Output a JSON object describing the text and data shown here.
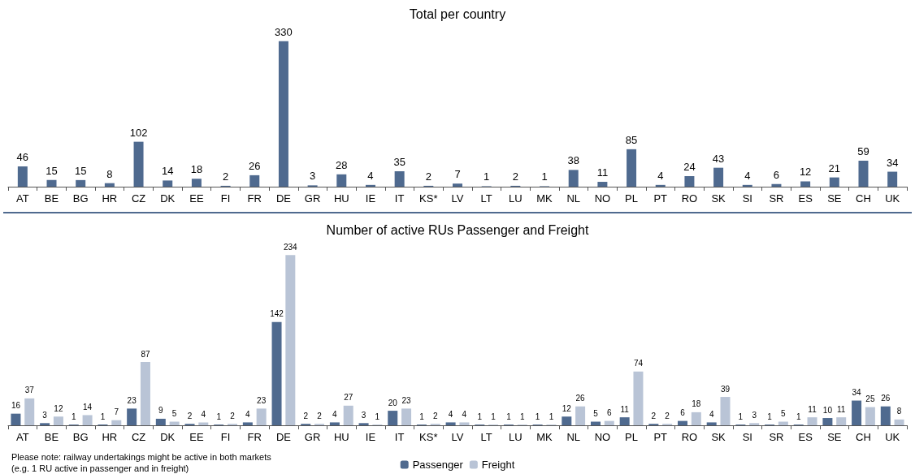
{
  "chart_data": [
    {
      "type": "bar",
      "title": "Total per country",
      "categories": [
        "AT",
        "BE",
        "BG",
        "HR",
        "CZ",
        "DK",
        "EE",
        "FI",
        "FR",
        "DE",
        "GR",
        "HU",
        "IE",
        "IT",
        "KS*",
        "LV",
        "LT",
        "LU",
        "MK",
        "NL",
        "NO",
        "PL",
        "PT",
        "RO",
        "SK",
        "SI",
        "SR",
        "ES",
        "SE",
        "CH",
        "UK"
      ],
      "values": [
        46,
        15,
        15,
        8,
        102,
        14,
        18,
        2,
        26,
        330,
        3,
        28,
        4,
        35,
        2,
        7,
        1,
        2,
        1,
        38,
        11,
        85,
        4,
        24,
        43,
        4,
        6,
        12,
        21,
        59,
        34
      ],
      "color": "#4f6a8f",
      "data_labels": true,
      "legend": false
    },
    {
      "type": "bar",
      "title": "Number of active RUs Passenger and Freight",
      "categories": [
        "AT",
        "BE",
        "BG",
        "HR",
        "CZ",
        "DK",
        "EE",
        "FI",
        "FR",
        "DE",
        "GR",
        "HU",
        "IE",
        "IT",
        "KS*",
        "LV",
        "LT",
        "LU",
        "MK",
        "NL",
        "NO",
        "PL",
        "PT",
        "RO",
        "SK",
        "SI",
        "SR",
        "ES",
        "SE",
        "CH",
        "UK"
      ],
      "series": [
        {
          "name": "Passenger",
          "color": "#4f6a8f",
          "values": [
            16,
            3,
            1,
            1,
            23,
            9,
            2,
            1,
            4,
            142,
            2,
            4,
            3,
            20,
            1,
            4,
            1,
            1,
            1,
            12,
            5,
            11,
            2,
            6,
            4,
            1,
            1,
            1,
            10,
            34,
            26
          ]
        },
        {
          "name": "Freight",
          "color": "#b9c4d6",
          "values": [
            37,
            12,
            14,
            7,
            87,
            5,
            4,
            2,
            23,
            234,
            2,
            27,
            1,
            23,
            2,
            4,
            1,
            1,
            1,
            26,
            6,
            74,
            2,
            18,
            39,
            3,
            5,
            11,
            11,
            25,
            8
          ]
        }
      ],
      "data_labels": true,
      "legend": "bottom",
      "annotations": [
        "Please note: railway undertakings might be active in both markets",
        "(e.g. 1 RU active in passenger and in freight)"
      ]
    }
  ]
}
